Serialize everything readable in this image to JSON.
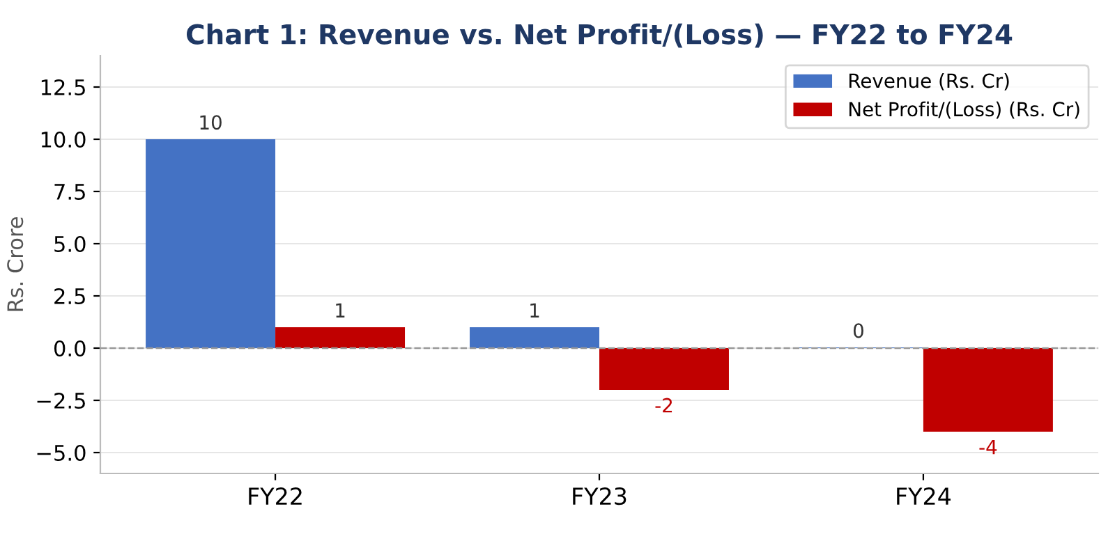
{
  "chart_data": {
    "type": "bar",
    "title": "Chart 1: Revenue vs. Net Profit/(Loss) — FY22 to FY24",
    "ylabel": "Rs. Crore",
    "categories": [
      "FY22",
      "FY23",
      "FY24"
    ],
    "series": [
      {
        "name": "Revenue (Rs. Cr)",
        "color": "#4472c4",
        "values": [
          10,
          1,
          0.03
        ],
        "value_labels": [
          "10",
          "1",
          "0"
        ]
      },
      {
        "name": "Net Profit/(Loss) (Rs. Cr)",
        "color": "#c00000",
        "values": [
          1,
          -2,
          -4
        ],
        "value_labels": [
          "1",
          "-2",
          "-4"
        ]
      }
    ],
    "ylim": [
      -6,
      14
    ],
    "yticks": [
      {
        "value": -5,
        "label": "−5.0"
      },
      {
        "value": -2.5,
        "label": "−2.5"
      },
      {
        "value": 0,
        "label": "0.0"
      },
      {
        "value": 2.5,
        "label": "2.5"
      },
      {
        "value": 5,
        "label": "5.0"
      },
      {
        "value": 7.5,
        "label": "7.5"
      },
      {
        "value": 10,
        "label": "10.0"
      },
      {
        "value": 12.5,
        "label": "12.5"
      }
    ],
    "ref_lines": [
      {
        "axis": "y",
        "value": 0,
        "color": "#999999",
        "line_style": "dashed"
      }
    ],
    "grid": "y",
    "legend": "top right"
  }
}
